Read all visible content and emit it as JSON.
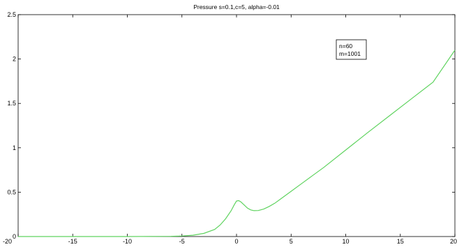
{
  "chart_data": {
    "type": "line",
    "title": "Pressure s=0.1,c=5, alpha=-0.01",
    "xlabel": "",
    "ylabel": "",
    "xlim": [
      -20,
      20
    ],
    "ylim": [
      0,
      2.5
    ],
    "x_ticks": [
      -20,
      -15,
      -10,
      -5,
      0,
      5,
      10,
      15,
      20
    ],
    "y_ticks": [
      0,
      0.5,
      1,
      1.5,
      2,
      2.5
    ],
    "x_tick_labels": [
      "-20",
      "-15",
      "-10",
      "-5",
      "0",
      "5",
      "10",
      "15",
      "20"
    ],
    "y_tick_labels": [
      "0",
      "0.5",
      "1",
      "1.5",
      "2",
      "2.5"
    ],
    "grid": false,
    "legend_position": "top-right",
    "annotation_lines": [
      "n=60",
      "m=1001"
    ],
    "series": [
      {
        "color": "#5fd35f",
        "x": [
          -20,
          -15,
          -10,
          -6,
          -5,
          -4,
          -3,
          -2,
          -1.5,
          -1,
          -0.5,
          -0.2,
          0,
          0.2,
          0.4,
          0.7,
          1,
          1.3,
          1.6,
          2,
          2.5,
          3,
          3.5,
          4,
          5,
          6,
          7,
          8,
          10,
          12,
          14,
          16,
          18,
          20
        ],
        "y": [
          0,
          0,
          0,
          0.002,
          0.006,
          0.015,
          0.035,
          0.08,
          0.13,
          0.2,
          0.29,
          0.36,
          0.4,
          0.405,
          0.39,
          0.355,
          0.32,
          0.3,
          0.292,
          0.293,
          0.31,
          0.34,
          0.375,
          0.42,
          0.51,
          0.6,
          0.69,
          0.78,
          0.975,
          1.17,
          1.36,
          1.55,
          1.74,
          2.1
        ]
      }
    ]
  }
}
